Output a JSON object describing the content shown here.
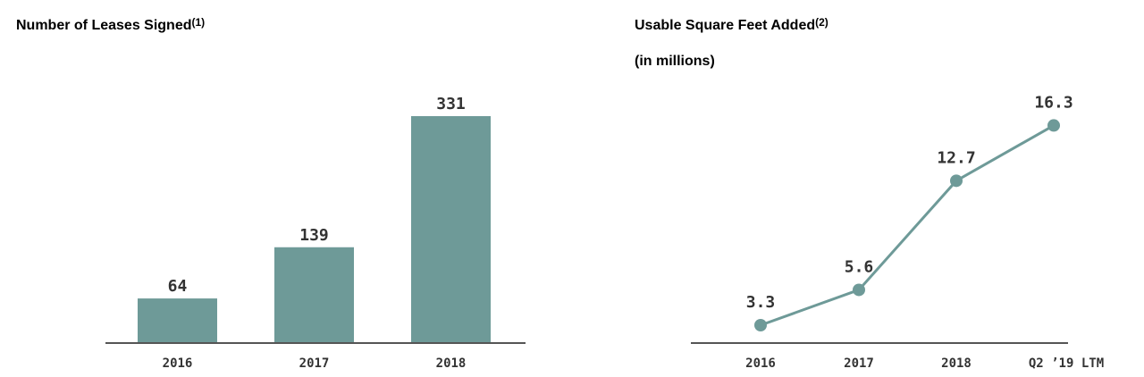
{
  "chart_data": [
    {
      "type": "bar",
      "title": "Number of Leases Signed",
      "title_footnote": "(1)",
      "categories": [
        "2016",
        "2017",
        "2018"
      ],
      "values": [
        64,
        139,
        331
      ],
      "data_labels": [
        "64",
        "139",
        "331"
      ],
      "ylim": [
        0,
        350
      ],
      "grid": false,
      "color": "#6e9a98"
    },
    {
      "type": "line",
      "title": "Usable Square Feet Added",
      "title_footnote": "(2)",
      "subtitle": "(in millions)",
      "categories": [
        "2016",
        "2017",
        "2018",
        "Q2 ’19 LTM"
      ],
      "values": [
        3.3,
        5.6,
        12.7,
        16.3
      ],
      "data_labels": [
        "3.3",
        "5.6",
        "12.7",
        "16.3"
      ],
      "ylim": [
        2.2,
        17.5
      ],
      "grid": false,
      "color": "#6e9a98"
    }
  ]
}
